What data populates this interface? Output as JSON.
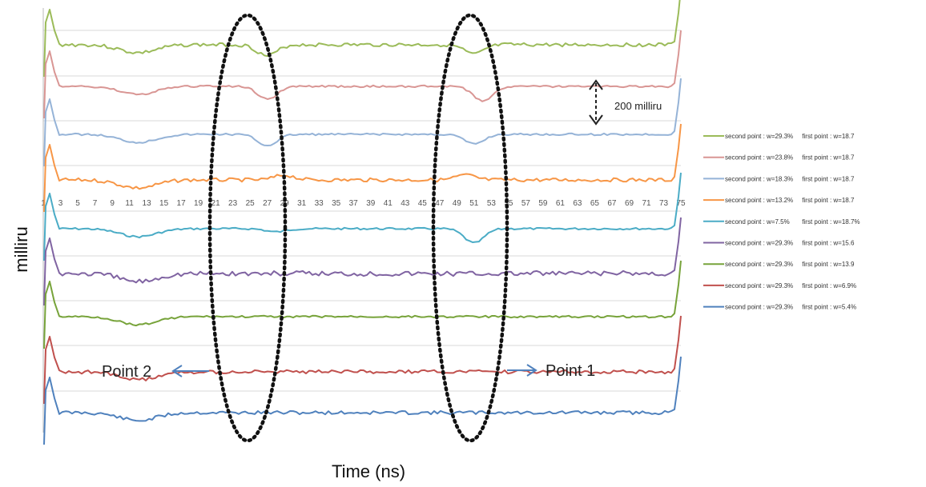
{
  "chart_data": {
    "type": "line",
    "title": "",
    "xlabel": "Time (ns)",
    "ylabel": "milliru",
    "xlim": [
      1,
      75
    ],
    "x_ticks": [
      1,
      3,
      5,
      7,
      9,
      11,
      13,
      15,
      17,
      19,
      21,
      23,
      25,
      27,
      29,
      31,
      33,
      35,
      37,
      39,
      41,
      43,
      45,
      47,
      49,
      51,
      53,
      55,
      57,
      59,
      61,
      63,
      65,
      67,
      69,
      71,
      73,
      75
    ],
    "grid": "horizontal",
    "legend_position": "right",
    "series": [
      {
        "name": "second point : w=29.3%     first point : w=18.7",
        "color": "#9BBB59",
        "offset": 0,
        "baseline": 56,
        "dips": [
          [
            27,
            14
          ],
          [
            51,
            12
          ]
        ],
        "noise": "medium"
      },
      {
        "name": "second point : w=23.8%     first point : w=18.7",
        "color": "#D99694",
        "offset": 1,
        "baseline": 108,
        "dips": [
          [
            27,
            16
          ],
          [
            52,
            18
          ]
        ],
        "noise": "low"
      },
      {
        "name": "second point : w=18.3%     first point : w=18.7",
        "color": "#95B3D7",
        "offset": 2,
        "baseline": 168,
        "dips": [
          [
            27,
            14
          ],
          [
            51,
            12
          ]
        ],
        "noise": "low"
      },
      {
        "name": "second point : w=13.2%     first point : w=18.7",
        "color": "#F79646",
        "offset": 3,
        "baseline": 225,
        "dips": [
          [
            29,
            -6
          ],
          [
            50,
            -6
          ]
        ],
        "noise": "medium"
      },
      {
        "name": "second point : w=7.5%       first point : w=18.7%",
        "color": "#4BACC6",
        "offset": 4,
        "baseline": 286,
        "dips": [
          [
            28,
            4
          ],
          [
            51,
            18
          ]
        ],
        "noise": "low"
      },
      {
        "name": "second point : w=29.3%     first point : w=15.6",
        "color": "#8064A2",
        "offset": 5,
        "baseline": 342,
        "dips": [],
        "noise": "high"
      },
      {
        "name": "second point : w=29.3%     first point : w=13.9",
        "color": "#77A33A",
        "offset": 6,
        "baseline": 396,
        "dips": [],
        "noise": "low"
      },
      {
        "name": "second point : w=29.3%     first point : w=6.9%",
        "color": "#C0504D",
        "offset": 7,
        "baseline": 465,
        "dips": [],
        "noise": "medium"
      },
      {
        "name": "second point : w=29.3%     first point : w=5.4%",
        "color": "#4F81BD",
        "offset": 8,
        "baseline": 516,
        "dips": [],
        "noise": "medium"
      }
    ],
    "annotations": {
      "scale_bar": "200 milliru",
      "point1": "Point 1",
      "point2": "Point 2"
    }
  }
}
